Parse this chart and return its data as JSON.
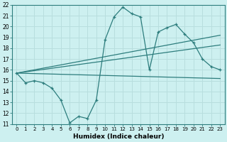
{
  "xlabel": "Humidex (Indice chaleur)",
  "ylabel": "",
  "xlim": [
    -0.5,
    23.5
  ],
  "ylim": [
    11,
    22
  ],
  "yticks": [
    11,
    12,
    13,
    14,
    15,
    16,
    17,
    18,
    19,
    20,
    21,
    22
  ],
  "xticks": [
    0,
    1,
    2,
    3,
    4,
    5,
    6,
    7,
    8,
    9,
    10,
    11,
    12,
    13,
    14,
    15,
    16,
    17,
    18,
    19,
    20,
    21,
    22,
    23
  ],
  "bg_color": "#cdf0f0",
  "line_color": "#2d7d7d",
  "grid_color": "#b8dede",
  "line1_x": [
    0,
    1,
    2,
    3,
    4,
    5,
    6,
    7,
    8,
    9,
    10,
    11,
    12,
    13,
    14,
    15,
    16,
    17,
    18,
    19,
    20,
    21,
    22,
    23
  ],
  "line1_y": [
    15.7,
    14.8,
    15.0,
    14.8,
    14.3,
    13.2,
    11.1,
    11.7,
    11.5,
    13.2,
    18.8,
    20.9,
    21.8,
    21.2,
    20.9,
    16.0,
    19.5,
    19.9,
    20.2,
    19.3,
    18.5,
    17.0,
    16.3,
    16.0
  ],
  "line2_x": [
    0,
    23
  ],
  "line2_y": [
    15.7,
    15.2
  ],
  "line3_x": [
    0,
    23
  ],
  "line3_y": [
    15.7,
    18.3
  ],
  "line4_x": [
    0,
    23
  ],
  "line4_y": [
    15.7,
    19.2
  ],
  "xtick_fontsize": 5.0,
  "ytick_fontsize": 5.5,
  "xlabel_fontsize": 6.5
}
